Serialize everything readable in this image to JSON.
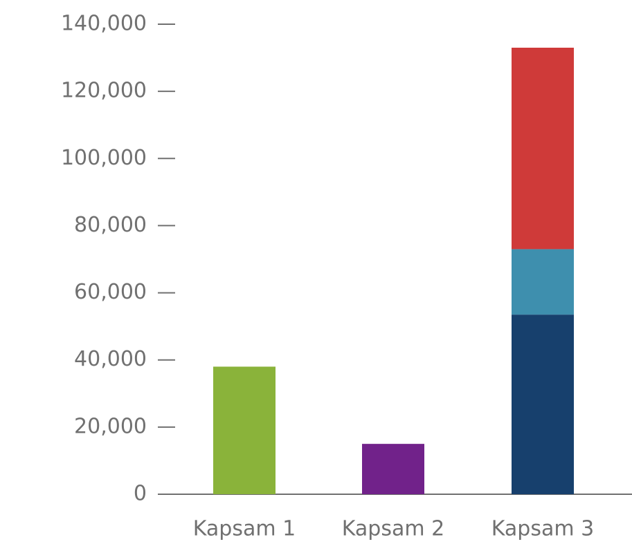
{
  "chart_data": {
    "type": "bar",
    "stacked": true,
    "categories": [
      "Kapsam 1",
      "Kapsam 2",
      "Kapsam 3"
    ],
    "series": [
      {
        "color": "#8ab33a",
        "values": [
          38000,
          null,
          null
        ]
      },
      {
        "color": "#71228a",
        "values": [
          null,
          15000,
          null
        ]
      },
      {
        "color": "#17406d",
        "values": [
          null,
          null,
          53500
        ]
      },
      {
        "color": "#3e8fae",
        "values": [
          null,
          null,
          19500
        ]
      },
      {
        "color": "#cf3a39",
        "values": [
          null,
          null,
          60000
        ]
      }
    ],
    "ylim": [
      0,
      140000
    ],
    "yticks": [
      0,
      {
        "value": 20000,
        "label": "20,000"
      },
      {
        "value": 40000,
        "label": "40,000"
      },
      {
        "value": 60000,
        "label": "60,000"
      },
      {
        "value": 80000,
        "label": "80,000"
      },
      {
        "value": 100000,
        "label": "100,000"
      },
      {
        "value": 120000,
        "label": "120,000"
      },
      {
        "value": 140000,
        "label": "140,000"
      }
    ]
  }
}
